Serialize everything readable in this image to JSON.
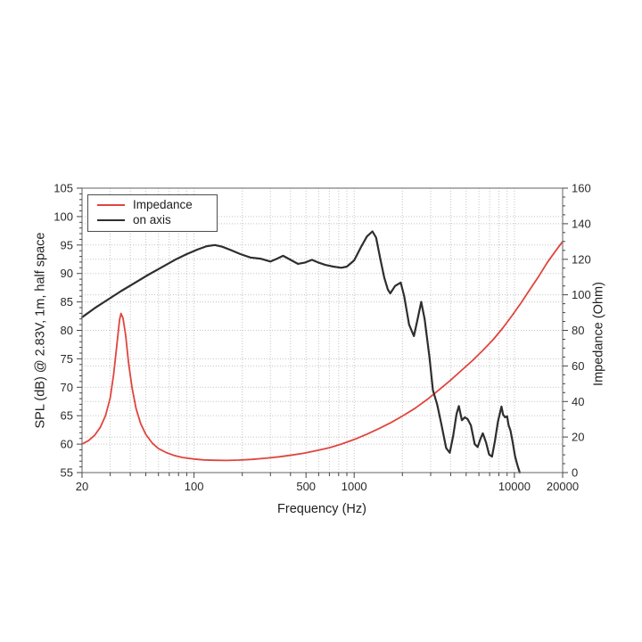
{
  "page": {
    "background": "#ffffff"
  },
  "chart_data": {
    "type": "line",
    "title": "",
    "x_axis": {
      "label": "Frequency (Hz)",
      "scale": "log",
      "min": 20,
      "max": 20000,
      "labeled_ticks": [
        20,
        100,
        500,
        1000,
        10000,
        20000
      ]
    },
    "y_axis_left": {
      "label": "SPL (dB) @ 2.83V, 1m, half space",
      "min": 55,
      "max": 105,
      "tick_step": 5,
      "minor_step": 1,
      "ticks": [
        55,
        60,
        65,
        70,
        75,
        80,
        85,
        90,
        95,
        100,
        105
      ]
    },
    "y_axis_right": {
      "label": "Impedance (Ohm)",
      "min": 0,
      "max": 160,
      "tick_step": 20,
      "minor_step": 5,
      "ticks": [
        0,
        20,
        40,
        60,
        80,
        100,
        120,
        140,
        160
      ]
    },
    "grid": {
      "show": true,
      "style": "dotted",
      "color": "#c4c4c4"
    },
    "frame_color": "#7d7d7d",
    "tick_color": "#444444",
    "tick_label_color": "#2a2a2a",
    "legend": {
      "position": "top-left",
      "entries": [
        {
          "label": "Impedance",
          "color": "#e0453e"
        },
        {
          "label": "on axis",
          "color": "#2e2e2e"
        }
      ]
    },
    "series": [
      {
        "name": "Impedance",
        "axis": "right",
        "unit": "Ohm",
        "color": "#e0453e",
        "width": 1.8,
        "points": [
          [
            20,
            16
          ],
          [
            22,
            18
          ],
          [
            24,
            21
          ],
          [
            26,
            25.5
          ],
          [
            28,
            32
          ],
          [
            30,
            42
          ],
          [
            31.5,
            55
          ],
          [
            33,
            72
          ],
          [
            34.3,
            86
          ],
          [
            35,
            89.5
          ],
          [
            36,
            87
          ],
          [
            37.5,
            77
          ],
          [
            39,
            62
          ],
          [
            41,
            48
          ],
          [
            43.5,
            36
          ],
          [
            46.5,
            27.5
          ],
          [
            50,
            21.5
          ],
          [
            55,
            16.5
          ],
          [
            60,
            13.5
          ],
          [
            67,
            11.3
          ],
          [
            75,
            9.7
          ],
          [
            85,
            8.5
          ],
          [
            100,
            7.6
          ],
          [
            115,
            7.1
          ],
          [
            135,
            6.9
          ],
          [
            160,
            6.8
          ],
          [
            190,
            7.0
          ],
          [
            230,
            7.4
          ],
          [
            280,
            8.1
          ],
          [
            340,
            8.9
          ],
          [
            410,
            9.9
          ],
          [
            490,
            11.0
          ],
          [
            590,
            12.5
          ],
          [
            700,
            14.0
          ],
          [
            830,
            16.0
          ],
          [
            1000,
            18.6
          ],
          [
            1200,
            21.6
          ],
          [
            1430,
            24.8
          ],
          [
            1700,
            28.2
          ],
          [
            2000,
            31.8
          ],
          [
            2400,
            36.2
          ],
          [
            2900,
            41.6
          ],
          [
            3400,
            46.7
          ],
          [
            4000,
            52
          ],
          [
            4700,
            57.7
          ],
          [
            5500,
            63.2
          ],
          [
            6400,
            69
          ],
          [
            7400,
            75
          ],
          [
            8500,
            81.5
          ],
          [
            9700,
            88.5
          ],
          [
            11000,
            95.5
          ],
          [
            12500,
            103
          ],
          [
            14200,
            110.5
          ],
          [
            16000,
            118
          ],
          [
            18000,
            124.5
          ],
          [
            20000,
            130
          ]
        ]
      },
      {
        "name": "on axis",
        "axis": "left",
        "unit": "dB",
        "color": "#2e2e2e",
        "width": 2.2,
        "points": [
          [
            20,
            82.3
          ],
          [
            24,
            83.9
          ],
          [
            29,
            85.4
          ],
          [
            35,
            86.9
          ],
          [
            43,
            88.4
          ],
          [
            52,
            89.8
          ],
          [
            63,
            91.1
          ],
          [
            76,
            92.4
          ],
          [
            90,
            93.4
          ],
          [
            105,
            94.2
          ],
          [
            120,
            94.8
          ],
          [
            135,
            95.0
          ],
          [
            150,
            94.7
          ],
          [
            170,
            94.1
          ],
          [
            195,
            93.4
          ],
          [
            225,
            92.8
          ],
          [
            260,
            92.6
          ],
          [
            300,
            92.1
          ],
          [
            330,
            92.6
          ],
          [
            360,
            93.1
          ],
          [
            400,
            92.4
          ],
          [
            445,
            91.7
          ],
          [
            490,
            91.9
          ],
          [
            545,
            92.4
          ],
          [
            600,
            91.9
          ],
          [
            660,
            91.5
          ],
          [
            740,
            91.2
          ],
          [
            830,
            91.0
          ],
          [
            900,
            91.2
          ],
          [
            1000,
            92.3
          ],
          [
            1100,
            94.6
          ],
          [
            1200,
            96.5
          ],
          [
            1300,
            97.4
          ],
          [
            1370,
            96.3
          ],
          [
            1450,
            92.8
          ],
          [
            1540,
            89.3
          ],
          [
            1620,
            87.2
          ],
          [
            1680,
            86.5
          ],
          [
            1800,
            87.8
          ],
          [
            1950,
            88.4
          ],
          [
            2050,
            86.0
          ],
          [
            2200,
            81.0
          ],
          [
            2360,
            79.0
          ],
          [
            2480,
            81.8
          ],
          [
            2620,
            85.0
          ],
          [
            2750,
            82.0
          ],
          [
            2950,
            75.2
          ],
          [
            3100,
            69.5
          ],
          [
            3300,
            66.9
          ],
          [
            3500,
            63.5
          ],
          [
            3750,
            59.3
          ],
          [
            3950,
            58.5
          ],
          [
            4150,
            61.5
          ],
          [
            4350,
            65.3
          ],
          [
            4500,
            66.7
          ],
          [
            4700,
            64.2
          ],
          [
            4900,
            64.7
          ],
          [
            5100,
            64.4
          ],
          [
            5350,
            63.3
          ],
          [
            5650,
            60.0
          ],
          [
            5900,
            59.5
          ],
          [
            6150,
            61.0
          ],
          [
            6350,
            61.9
          ],
          [
            6650,
            60.3
          ],
          [
            6950,
            58.2
          ],
          [
            7250,
            57.8
          ],
          [
            7550,
            60.5
          ],
          [
            7900,
            64.0
          ],
          [
            8300,
            66.6
          ],
          [
            8500,
            65.2
          ],
          [
            8750,
            64.7
          ],
          [
            9000,
            64.9
          ],
          [
            9200,
            63.3
          ],
          [
            9450,
            62.4
          ],
          [
            9750,
            60.4
          ],
          [
            10100,
            57.8
          ],
          [
            10450,
            56.3
          ],
          [
            10800,
            55.0
          ]
        ]
      }
    ]
  }
}
